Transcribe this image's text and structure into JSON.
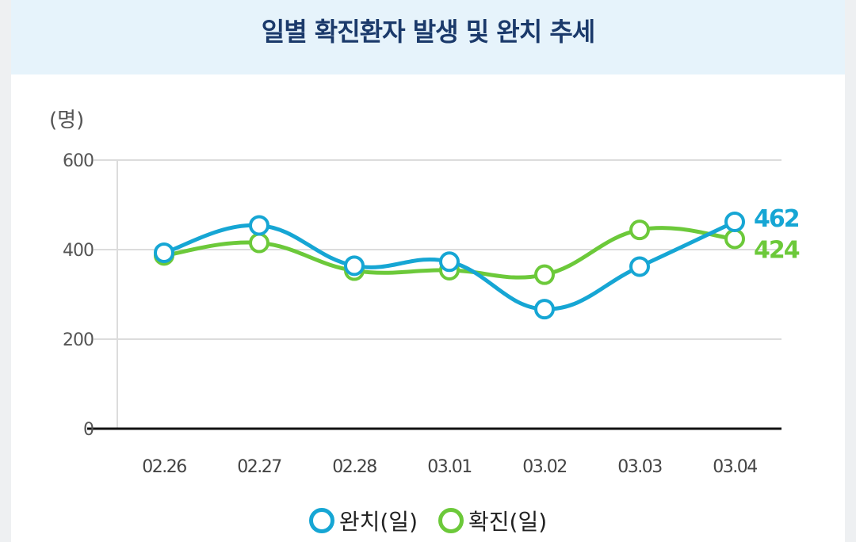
{
  "header": {
    "title": "일별 확진환자 발생 및 완치 추세"
  },
  "chart_data": {
    "type": "line",
    "title": "일별 확진환자 발생 및 완치 추세",
    "ylabel": "(명)",
    "xlabel": "",
    "categories": [
      "02.26",
      "02.27",
      "02.28",
      "03.01",
      "03.02",
      "03.03",
      "03.04"
    ],
    "ylim": [
      0,
      600
    ],
    "yticks": [
      "0",
      "200",
      "400",
      "600"
    ],
    "grid": true,
    "legend_position": "bottom",
    "series": [
      {
        "name": "완치(일)",
        "color": "#16a6d4",
        "values": [
          393,
          454,
          364,
          373,
          267,
          362,
          462
        ],
        "end_label": "462"
      },
      {
        "name": "확진(일)",
        "color": "#6cc93a",
        "values": [
          387,
          415,
          353,
          354,
          344,
          444,
          424
        ],
        "end_label": "424"
      }
    ]
  }
}
